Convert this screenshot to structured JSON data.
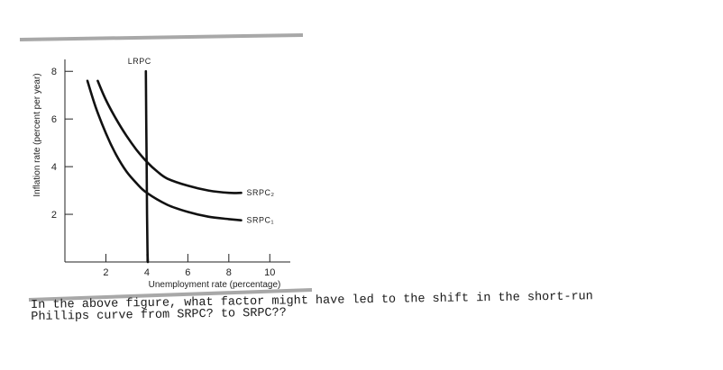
{
  "chart_data": {
    "type": "line",
    "xlabel": "Unemployment rate (percentage)",
    "ylabel": "Inflation rate (percent per year)",
    "x_ticks": [
      2,
      4,
      6,
      8,
      10
    ],
    "y_ticks": [
      2,
      4,
      6,
      8
    ],
    "xlim": [
      0,
      11
    ],
    "ylim": [
      0,
      8.5
    ],
    "grid": false,
    "series": [
      {
        "name": "LRPC",
        "x": [
          3.95,
          3.97,
          3.99,
          4.01,
          4.03,
          4.05
        ],
        "y": [
          8.0,
          6.0,
          4.0,
          2.0,
          0.5,
          0.0
        ]
      },
      {
        "name": "SRPC₂",
        "x": [
          1.6,
          2.0,
          2.5,
          3.0,
          3.5,
          4.0,
          4.5,
          5.0,
          6.0,
          7.0,
          8.0,
          8.6
        ],
        "y": [
          7.6,
          6.8,
          6.0,
          5.3,
          4.7,
          4.2,
          3.8,
          3.5,
          3.2,
          3.0,
          2.9,
          2.9
        ]
      },
      {
        "name": "SRPC₁",
        "x": [
          1.1,
          1.5,
          2.0,
          2.5,
          3.0,
          3.5,
          4.0,
          5.0,
          6.0,
          7.0,
          8.0,
          8.6
        ],
        "y": [
          7.6,
          6.5,
          5.4,
          4.5,
          3.8,
          3.3,
          2.9,
          2.4,
          2.1,
          1.9,
          1.8,
          1.75
        ]
      }
    ]
  },
  "question": {
    "line1": "In the above figure, what factor might have led to the shift in the short-run",
    "line2": "Phillips curve from SRPC? to SRPC??"
  }
}
